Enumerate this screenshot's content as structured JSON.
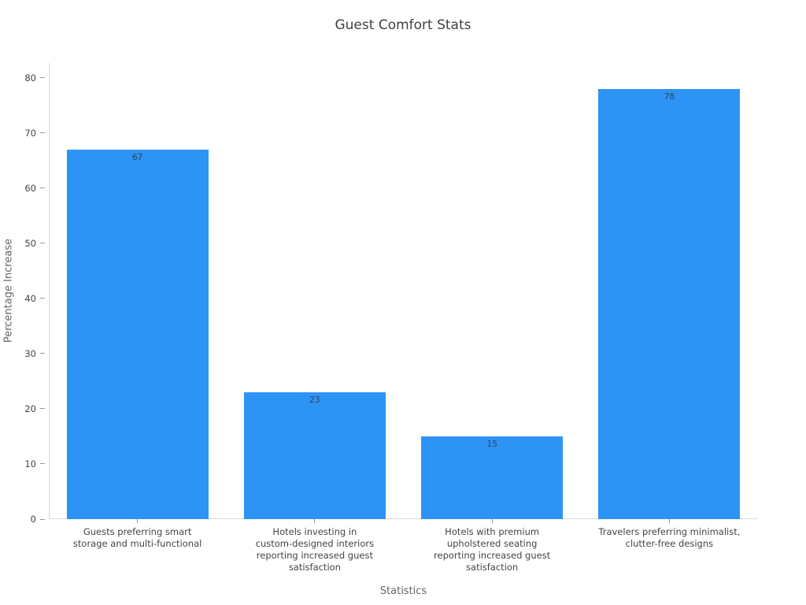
{
  "chart_data": {
    "type": "bar",
    "title": "Guest Comfort Stats",
    "xlabel": "Statistics",
    "ylabel": "Percentage Increase",
    "categories": [
      "Guests preferring smart storage and multi-functional",
      "Hotels investing in custom-designed interiors reporting increased guest satisfaction",
      "Hotels with premium upholstered seating reporting increased guest satisfaction",
      "Travelers preferring minimalist, clutter-free designs"
    ],
    "values": [
      67,
      23,
      15,
      78
    ],
    "value_labels": [
      "67",
      "23",
      "15",
      "78"
    ],
    "xtick_lines": [
      [
        "Guests preferring smart",
        "storage and multi-functional"
      ],
      [
        "Hotels investing in",
        "custom-designed interiors",
        "reporting increased guest",
        "satisfaction"
      ],
      [
        "Hotels with premium",
        "upholstered seating",
        "reporting increased guest",
        "satisfaction"
      ],
      [
        "Travelers preferring minimalist,",
        "clutter-free designs"
      ]
    ],
    "yticks": [
      0,
      10,
      20,
      30,
      40,
      50,
      60,
      70,
      80
    ],
    "ylim": [
      0,
      82.7
    ],
    "grid": false,
    "legend": "none",
    "colors": {
      "bar": "#2d93f5",
      "value_label": "#2f4358",
      "tick_label": "#444444",
      "axis_title": "#666666",
      "axis_line": "#d9d9d9",
      "tick_mark": "#999999",
      "title": "#3f3f3f",
      "background": "#ffffff"
    }
  }
}
